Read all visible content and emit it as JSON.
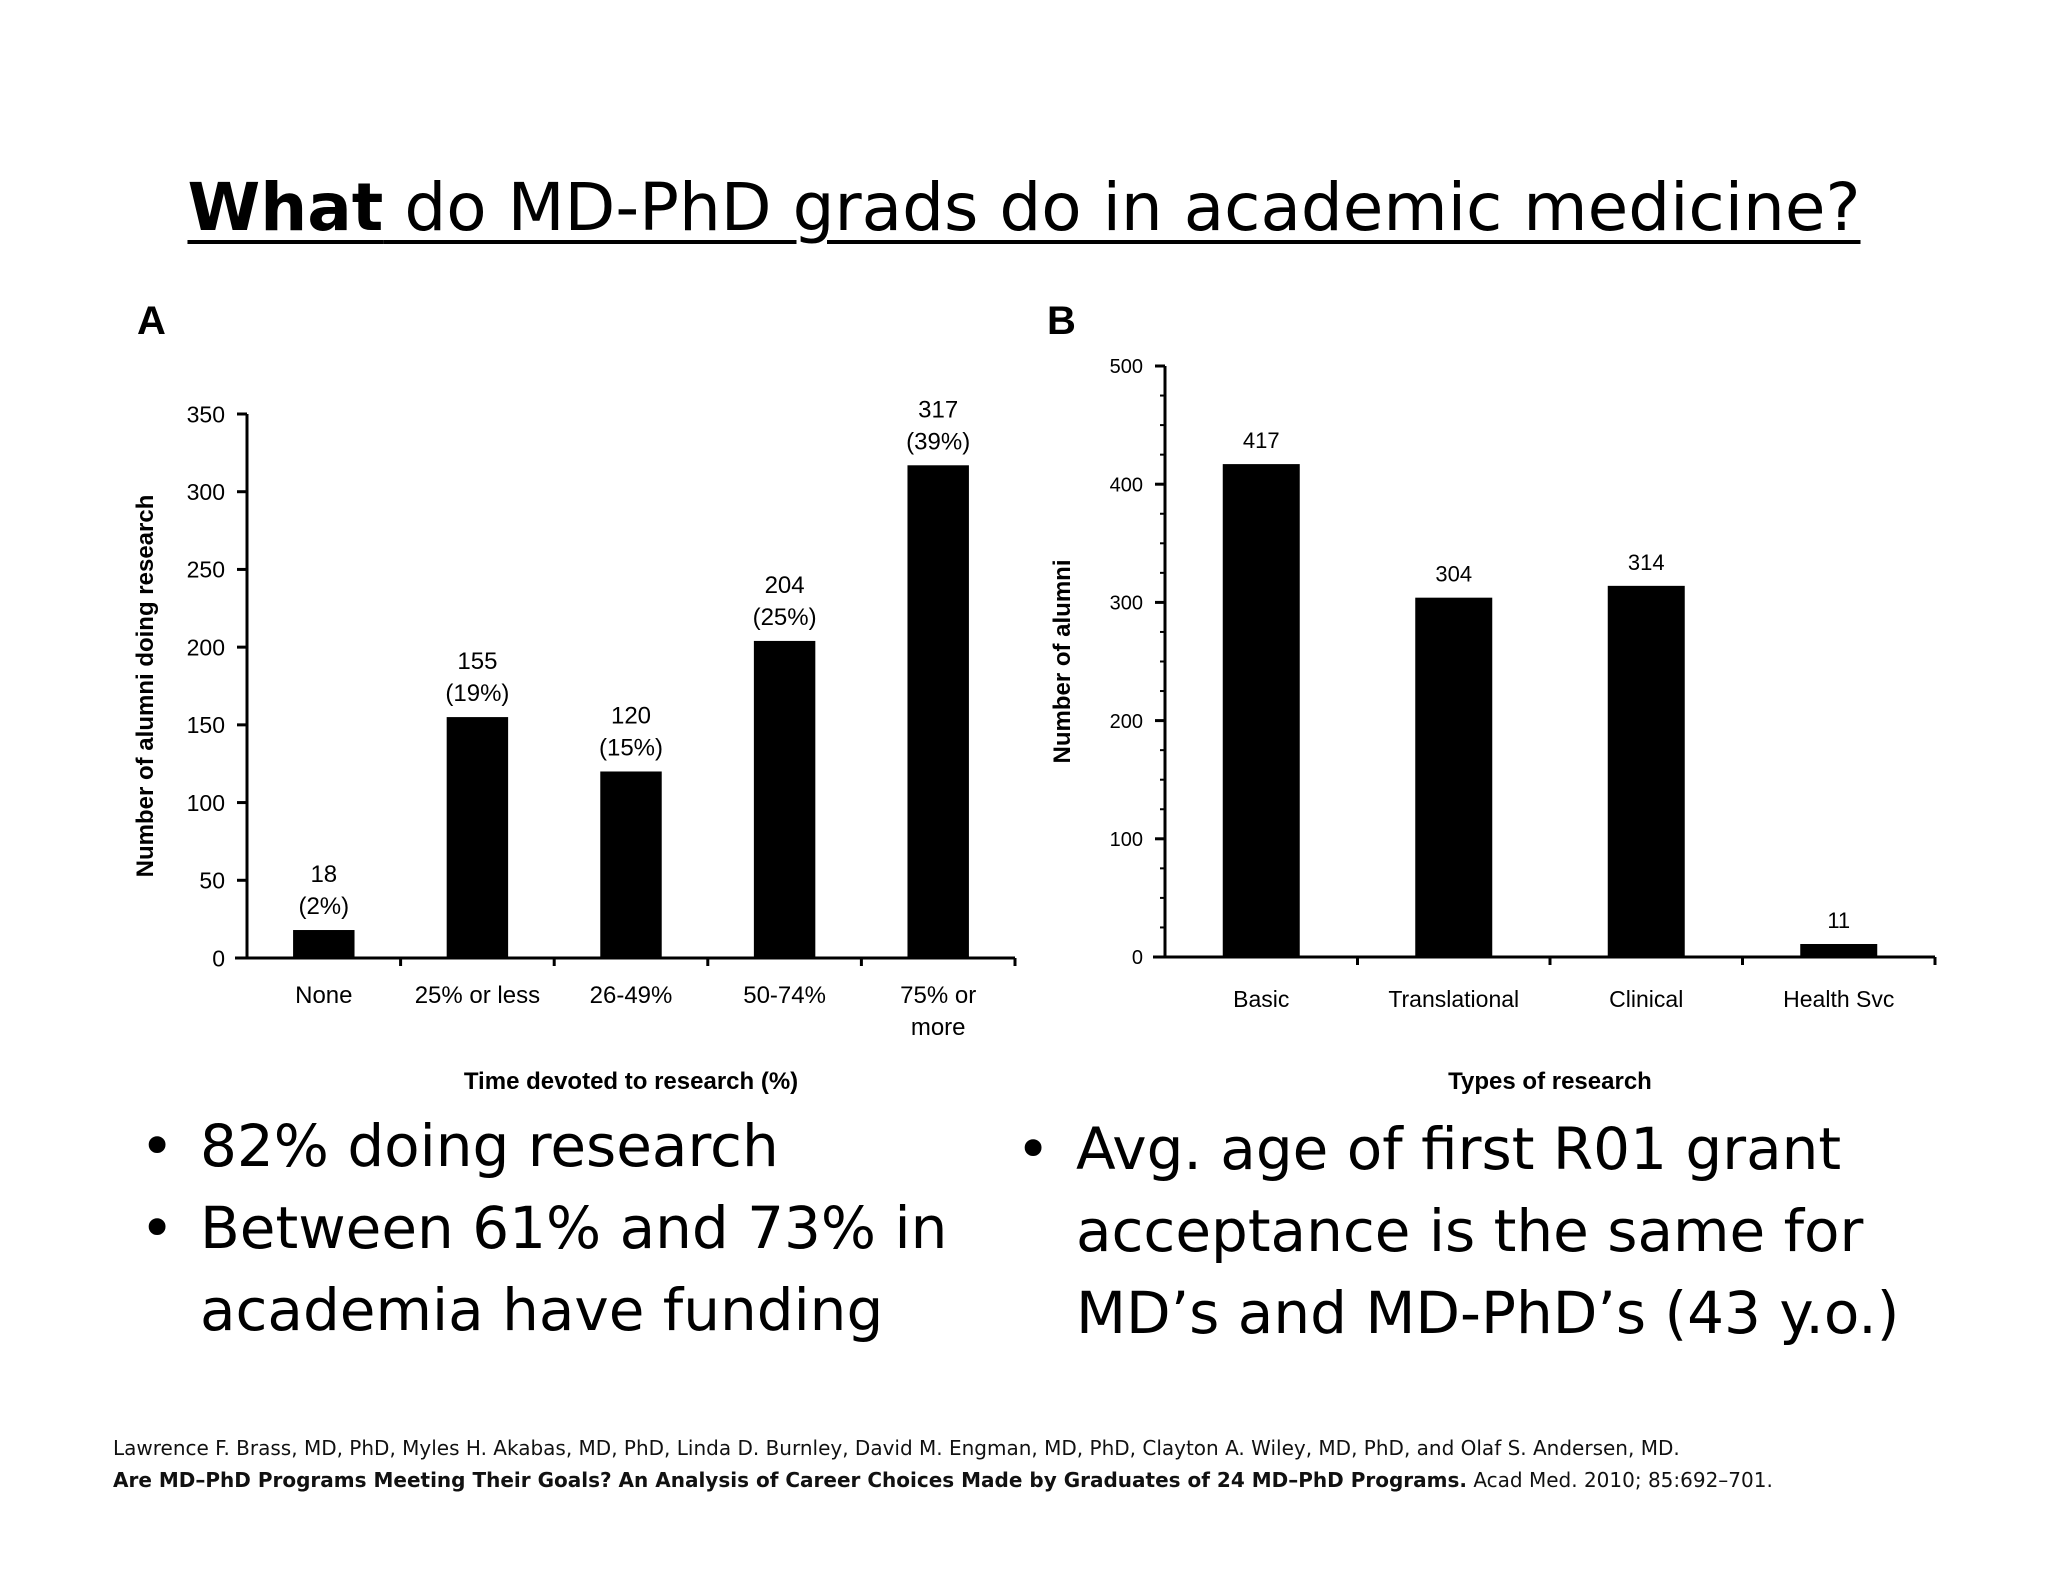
{
  "slide": {
    "title_bold": "What",
    "title_rest": " do MD-PhD grads do in academic medicine?",
    "bullets_left": [
      "82% doing research",
      "Between 61% and 73% in academia have funding"
    ],
    "bullets_right": [
      "Avg. age of first R01 grant acceptance is the same for MD’s and MD-PhD’s (43 y.o.)"
    ],
    "bullet_symbol": "•",
    "citation": {
      "authors": "Lawrence F. Brass, MD, PhD, Myles H. Akabas, MD, PhD, Linda D. Burnley, David M. Engman, MD, PhD, Clayton A. Wiley, MD, PhD, and Olaf S. Andersen, MD.",
      "article_title": "Are MD–PhD Programs Meeting Their Goals? An Analysis of Career Choices Made by Graduates of 24 MD–PhD Programs.",
      "journal": " Acad Med. 2010; 85:692–701."
    }
  },
  "chart_data": [
    {
      "panel": "A",
      "type": "bar",
      "categories": [
        "None",
        "25% or less",
        "26-49%",
        "50-74%",
        "75% or\nmore"
      ],
      "values": [
        18,
        155,
        120,
        204,
        317
      ],
      "value_labels": [
        "18\n(2%)",
        "155\n(19%)",
        "120\n(15%)",
        "204\n(25%)",
        "317\n(39%)"
      ],
      "xlabel": "Time devoted to research (%)",
      "ylabel": "Number of alumni doing research",
      "ylim": [
        0,
        350
      ],
      "yticks": [
        0,
        50,
        100,
        150,
        200,
        250,
        300,
        350
      ],
      "bar_color": "#000000",
      "grid": false
    },
    {
      "panel": "B",
      "type": "bar",
      "categories": [
        "Basic",
        "Translational",
        "Clinical",
        "Health Svc"
      ],
      "values": [
        417,
        304,
        314,
        11
      ],
      "value_labels": [
        "417",
        "304",
        "314",
        "11"
      ],
      "xlabel": "Types of research",
      "ylabel": "Number of alumni",
      "ylim": [
        0,
        500
      ],
      "yticks": [
        0,
        100,
        200,
        300,
        400,
        500
      ],
      "bar_color": "#000000",
      "grid": false
    }
  ]
}
